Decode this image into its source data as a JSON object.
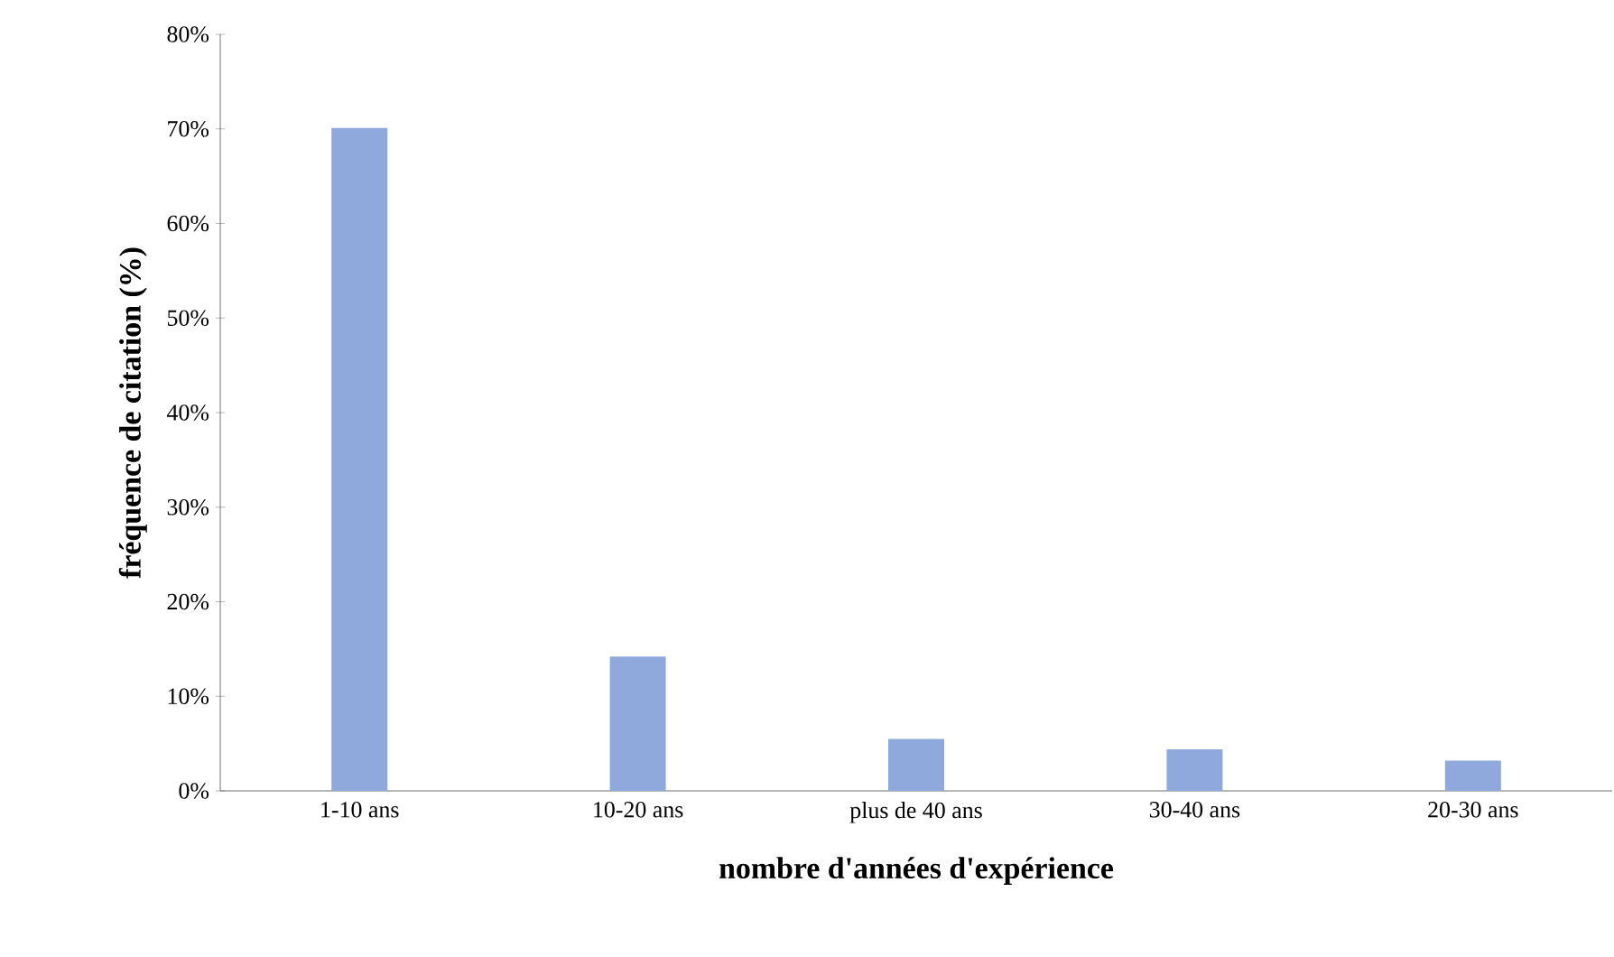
{
  "chart_data": {
    "type": "bar",
    "xlabel": "nombre d'années d'expérience",
    "ylabel": "fréquence de citation (%)",
    "categories": [
      "1-10 ans",
      "10-20 ans",
      "plus de 40 ans",
      "30-40 ans",
      "20-30 ans"
    ],
    "values": [
      70.1,
      14.2,
      5.5,
      4.4,
      3.2
    ],
    "color": "#8fa9dc",
    "ylim": [
      0,
      80
    ],
    "yticks": [
      {
        "value": 0,
        "label": "0%"
      },
      {
        "value": 10,
        "label": "10%"
      },
      {
        "value": 20,
        "label": "20%"
      },
      {
        "value": 30,
        "label": "30%"
      },
      {
        "value": 40,
        "label": "40%"
      },
      {
        "value": 50,
        "label": "50%"
      },
      {
        "value": 60,
        "label": "60%"
      },
      {
        "value": 70,
        "label": "70%"
      },
      {
        "value": 80,
        "label": "80%"
      }
    ],
    "grid": false
  }
}
